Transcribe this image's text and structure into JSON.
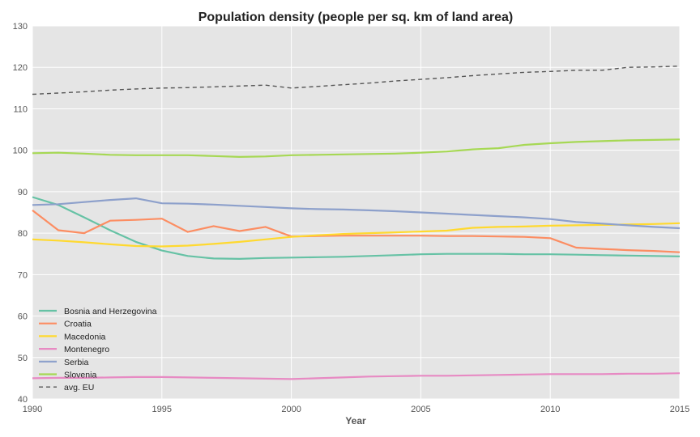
{
  "chart_data": {
    "type": "line",
    "title": "Population density (people per sq. km of land area)",
    "xlabel": "Year",
    "ylabel": "",
    "xlim": [
      1990,
      2015
    ],
    "ylim": [
      40,
      130
    ],
    "xticks": [
      1990,
      1995,
      2000,
      2005,
      2010,
      2015
    ],
    "yticks": [
      40,
      50,
      60,
      70,
      80,
      90,
      100,
      110,
      120,
      130
    ],
    "grid": true,
    "legend_position": "lower-left",
    "x": [
      1990,
      1991,
      1992,
      1993,
      1994,
      1995,
      1996,
      1997,
      1998,
      1999,
      2000,
      2001,
      2002,
      2003,
      2004,
      2005,
      2006,
      2007,
      2008,
      2009,
      2010,
      2011,
      2012,
      2013,
      2014,
      2015
    ],
    "series": [
      {
        "name": "Bosnia and Herzegovina",
        "color": "#66c2a5",
        "dash": "solid",
        "values": [
          88.7,
          86.8,
          83.8,
          80.7,
          77.9,
          75.8,
          74.5,
          73.9,
          73.8,
          74.0,
          74.1,
          74.2,
          74.3,
          74.5,
          74.7,
          74.9,
          75.0,
          75.0,
          75.0,
          74.9,
          74.9,
          74.8,
          74.7,
          74.6,
          74.5,
          74.4
        ]
      },
      {
        "name": "Croatia",
        "color": "#fc8d62",
        "dash": "solid",
        "values": [
          85.5,
          80.7,
          80.0,
          83.0,
          83.2,
          83.5,
          80.3,
          81.7,
          80.5,
          81.5,
          79.2,
          79.3,
          79.4,
          79.4,
          79.4,
          79.4,
          79.3,
          79.3,
          79.2,
          79.1,
          78.8,
          76.5,
          76.2,
          75.9,
          75.7,
          75.4
        ]
      },
      {
        "name": "Macedonia",
        "color": "#ffd92f",
        "dash": "solid",
        "values": [
          78.5,
          78.2,
          77.8,
          77.3,
          76.9,
          76.8,
          77.0,
          77.4,
          77.9,
          78.5,
          79.1,
          79.5,
          79.8,
          80.0,
          80.2,
          80.4,
          80.6,
          81.3,
          81.5,
          81.6,
          81.8,
          81.9,
          82.0,
          82.1,
          82.2,
          82.4
        ]
      },
      {
        "name": "Montenegro",
        "color": "#e78ac3",
        "dash": "solid",
        "values": [
          45.0,
          45.1,
          45.1,
          45.2,
          45.3,
          45.3,
          45.2,
          45.1,
          45.0,
          44.9,
          44.8,
          45.0,
          45.2,
          45.4,
          45.5,
          45.6,
          45.6,
          45.7,
          45.8,
          45.9,
          46.0,
          46.0,
          46.0,
          46.1,
          46.1,
          46.2
        ]
      },
      {
        "name": "Serbia",
        "color": "#8da0cb",
        "dash": "solid",
        "values": [
          86.8,
          87.0,
          87.5,
          88.0,
          88.4,
          87.2,
          87.1,
          86.9,
          86.6,
          86.3,
          86.0,
          85.8,
          85.7,
          85.5,
          85.3,
          85.0,
          84.7,
          84.4,
          84.1,
          83.8,
          83.4,
          82.7,
          82.3,
          81.9,
          81.5,
          81.2
        ]
      },
      {
        "name": "Slovenia",
        "color": "#a6d854",
        "dash": "solid",
        "values": [
          99.3,
          99.4,
          99.2,
          98.9,
          98.8,
          98.8,
          98.8,
          98.6,
          98.4,
          98.5,
          98.8,
          98.9,
          99.0,
          99.1,
          99.2,
          99.4,
          99.7,
          100.2,
          100.5,
          101.3,
          101.7,
          102.0,
          102.2,
          102.4,
          102.5,
          102.6
        ]
      },
      {
        "name": "avg. EU",
        "color": "#555555",
        "dash": "dashed",
        "values": [
          113.5,
          113.8,
          114.1,
          114.5,
          114.8,
          115.0,
          115.1,
          115.3,
          115.5,
          115.7,
          115.0,
          115.4,
          115.8,
          116.2,
          116.7,
          117.1,
          117.5,
          118.0,
          118.4,
          118.8,
          119.0,
          119.3,
          119.3,
          120.0,
          120.1,
          120.3
        ]
      }
    ]
  }
}
